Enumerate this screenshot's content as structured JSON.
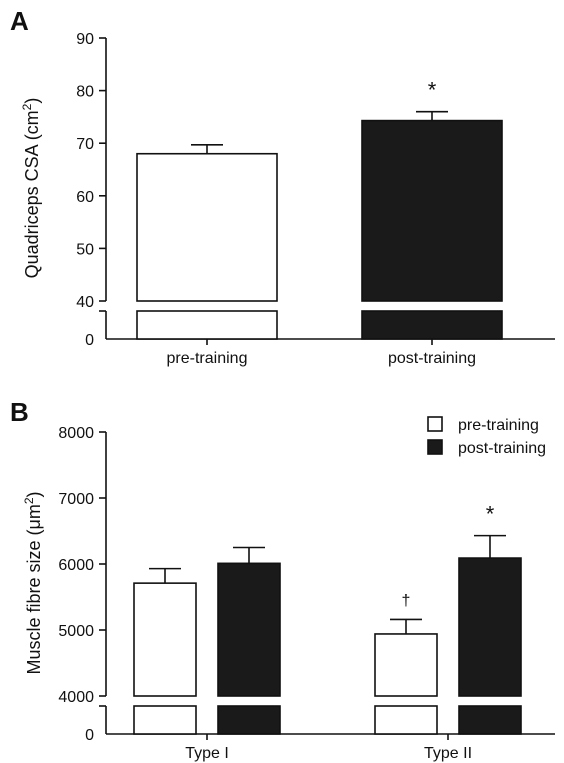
{
  "chart_data": [
    {
      "panel_label": "A",
      "type": "bar",
      "ylabel": "Quadriceps CSA (cm²)",
      "ylabel_base": "Quadriceps CSA (cm",
      "ylabel_sup": "2",
      "ylabel_close": ")",
      "ylim": [
        0,
        90
      ],
      "axis_break": [
        0,
        40
      ],
      "yticks": [
        "0",
        "40",
        "50",
        "60",
        "70",
        "80",
        "90"
      ],
      "categories": [
        "pre-training",
        "post-training"
      ],
      "values": [
        68,
        74.3
      ],
      "errors": [
        1.7,
        1.7
      ],
      "bar_colors": [
        "#ffffff",
        "#1a1a1a"
      ],
      "annotations": [
        "",
        "*"
      ]
    },
    {
      "panel_label": "B",
      "type": "bar",
      "ylabel": "Muscle fibre size (μm²)",
      "ylabel_base": "Muscle fibre size (μm",
      "ylabel_sup": "2",
      "ylabel_close": ")",
      "ylim": [
        0,
        8000
      ],
      "axis_break": [
        0,
        4000
      ],
      "yticks": [
        "0",
        "4000",
        "5000",
        "6000",
        "7000",
        "8000"
      ],
      "categories": [
        "Type I",
        "Type II"
      ],
      "series": [
        {
          "name": "pre-training",
          "color": "#ffffff",
          "values": [
            5710,
            4940
          ],
          "errors": [
            220,
            220
          ],
          "annotations": [
            "",
            "†"
          ]
        },
        {
          "name": "post-training",
          "color": "#1a1a1a",
          "values": [
            6010,
            6090
          ],
          "errors": [
            240,
            340
          ],
          "annotations": [
            "",
            "*"
          ]
        }
      ],
      "legend_position": "top-right"
    }
  ]
}
